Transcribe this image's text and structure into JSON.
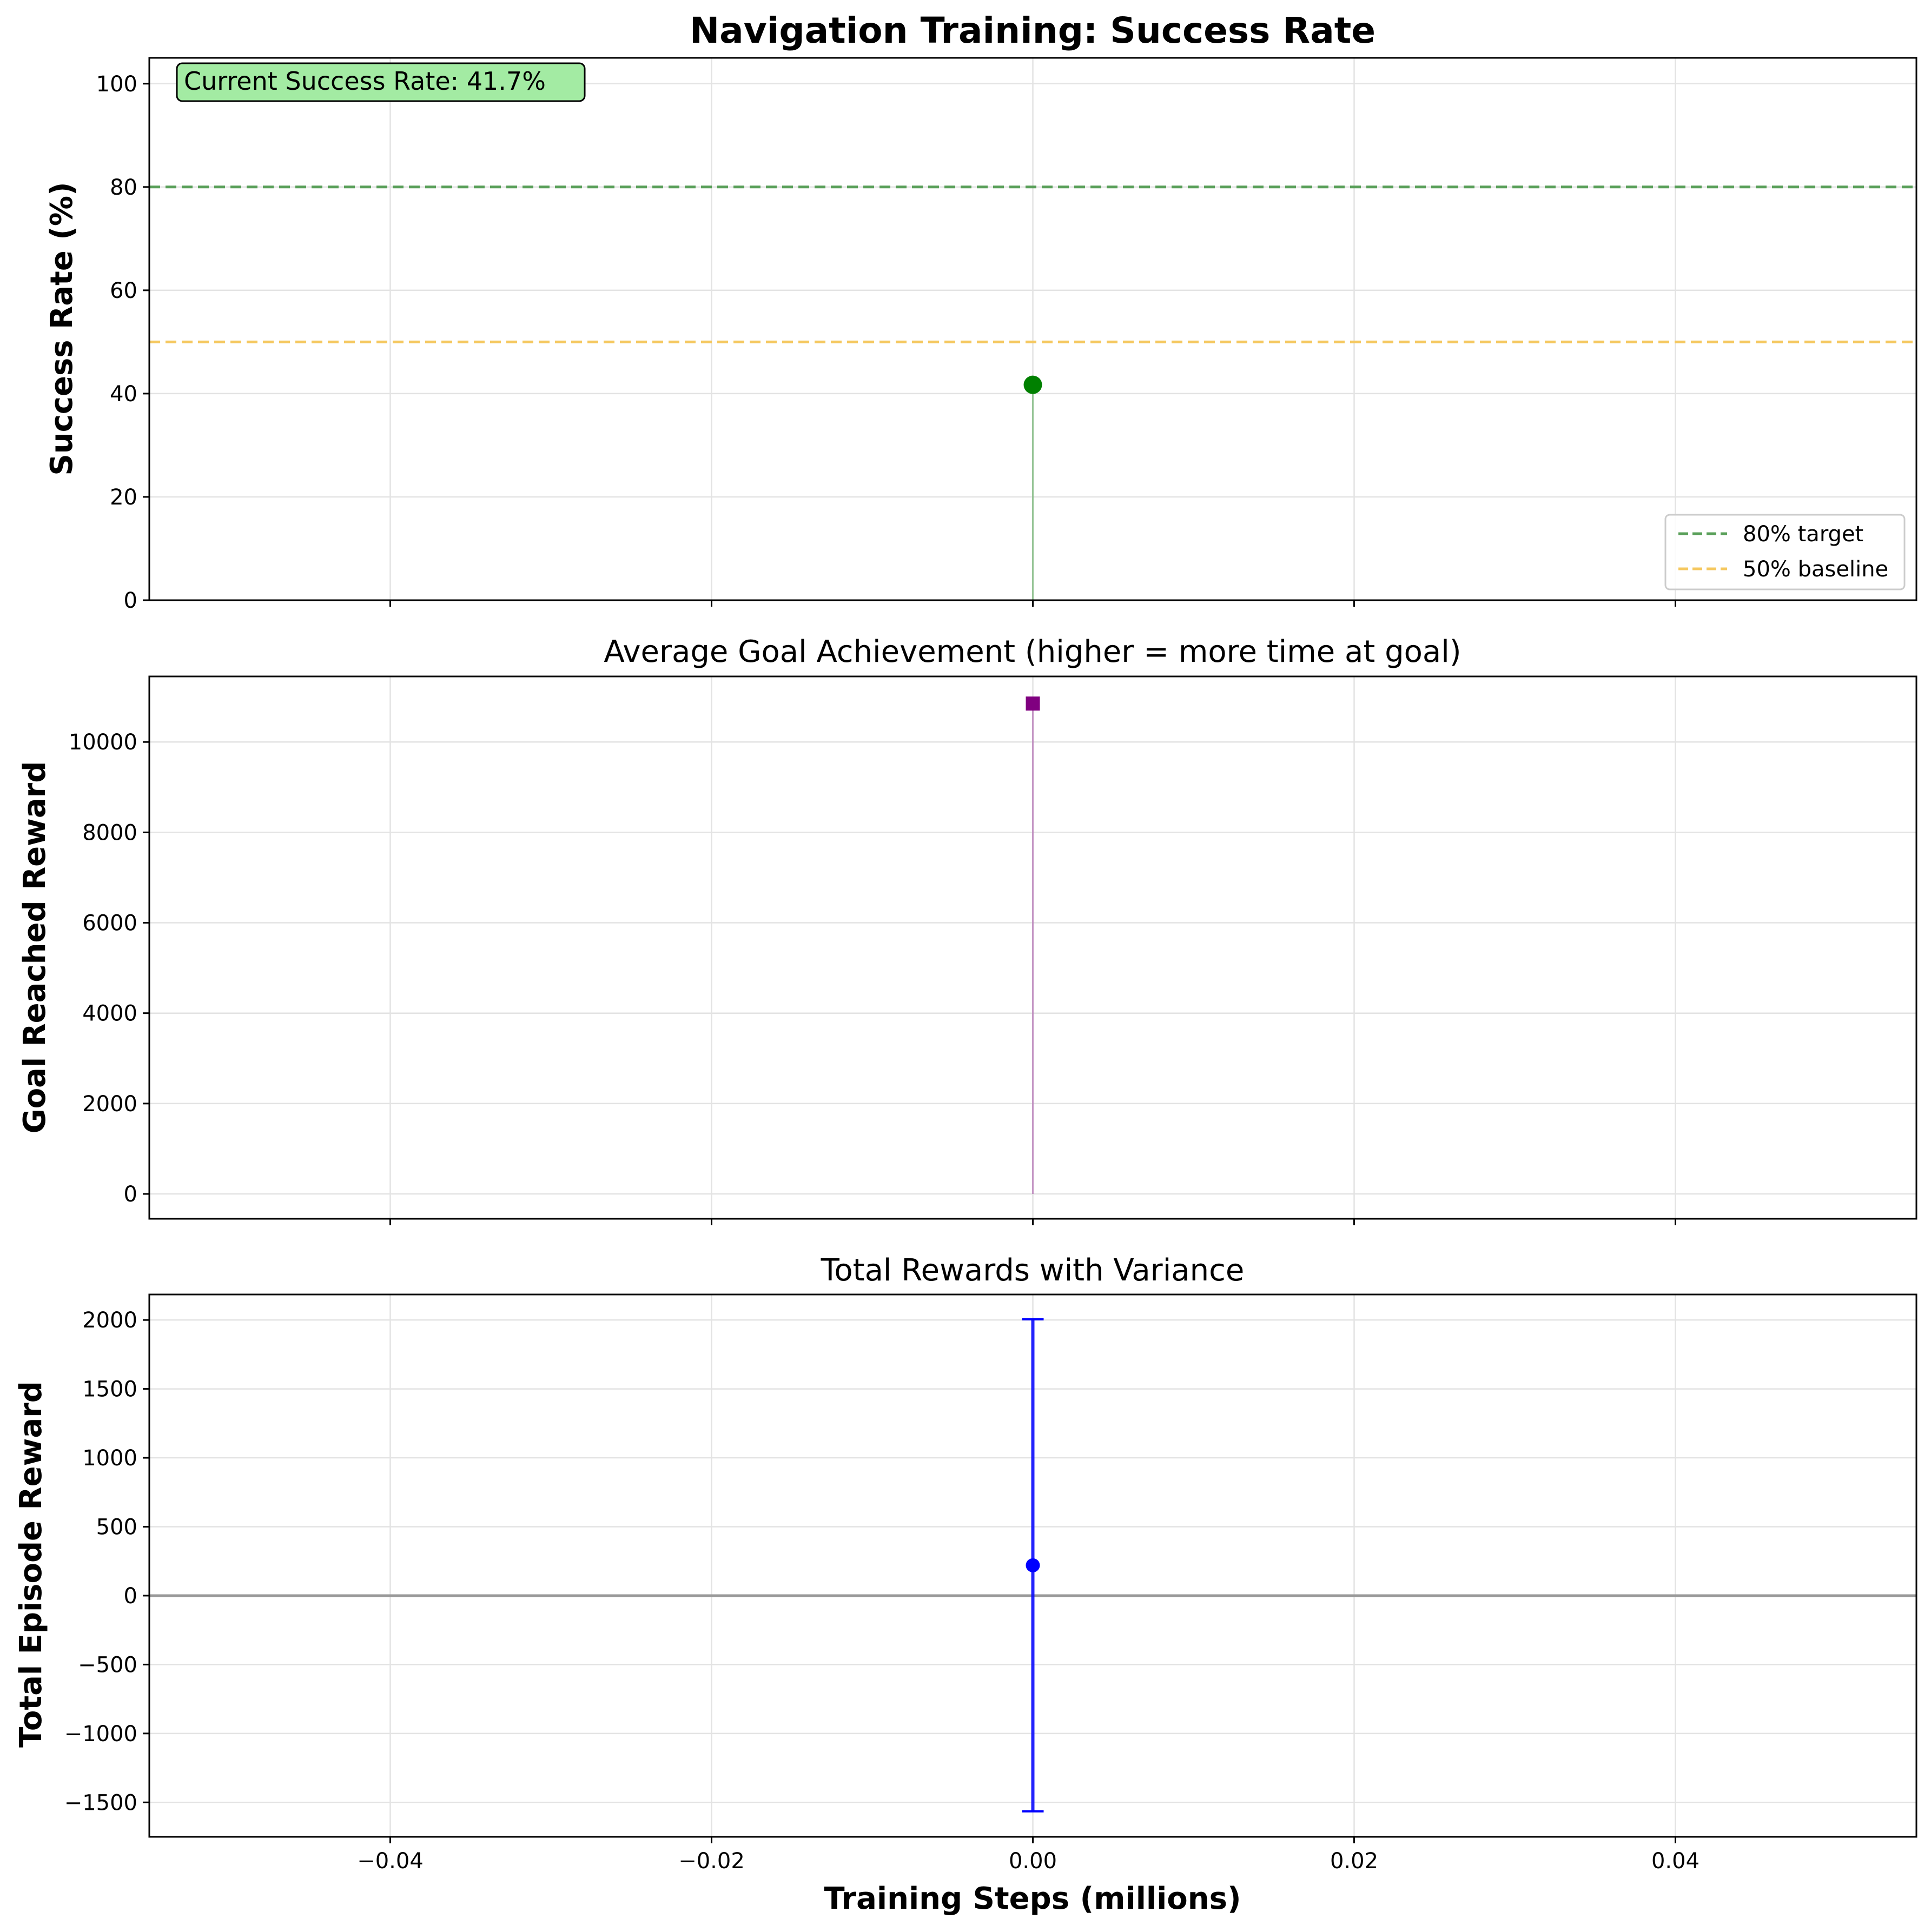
{
  "figure": {
    "xlabel": "Training Steps (millions)",
    "x_tick_labels": [
      "−0.04",
      "−0.02",
      "0.00",
      "0.02",
      "0.04"
    ]
  },
  "chart_data": [
    {
      "type": "line",
      "title": "Navigation Training: Success Rate",
      "ylabel": "Success Rate (%)",
      "xlim": [
        -0.055,
        0.055
      ],
      "ylim": [
        0,
        105
      ],
      "grid": true,
      "y_tick_labels": [
        "0",
        "20",
        "40",
        "60",
        "80",
        "100"
      ],
      "x": [
        0.0
      ],
      "series": [
        {
          "values": [
            41.7
          ],
          "color": "#008000",
          "marker": "circle"
        }
      ],
      "reference_lines": [
        {
          "y": 80,
          "label": "80% target",
          "color": "#5aa05a",
          "style": "dashed"
        },
        {
          "y": 50,
          "label": "50% baseline",
          "color": "#f5c860",
          "style": "dashed"
        }
      ],
      "legend": {
        "position": "bottom-right",
        "entries": [
          "80% target",
          "50% baseline"
        ]
      },
      "annotation": {
        "text": "Current Success Rate: 41.7%",
        "position": "top-left",
        "background": "#a3eba3"
      }
    },
    {
      "type": "line",
      "title": "Average Goal Achievement (higher = more time at goal)",
      "ylabel": "Goal Reached Reward",
      "xlim": [
        -0.055,
        0.055
      ],
      "ylim": [
        -550,
        11450
      ],
      "grid": true,
      "y_tick_labels": [
        "0",
        "2000",
        "4000",
        "6000",
        "8000",
        "10000"
      ],
      "x": [
        0.0
      ],
      "series": [
        {
          "values": [
            10850
          ],
          "color": "#800080",
          "marker": "square"
        }
      ]
    },
    {
      "type": "scatter",
      "title": "Total Rewards with Variance",
      "ylabel": "Total Episode Reward",
      "xlim": [
        -0.055,
        0.055
      ],
      "ylim": [
        -1750,
        2185
      ],
      "grid": true,
      "y_tick_labels": [
        "−1500",
        "−1000",
        "−500",
        "0",
        "500",
        "1000",
        "1500",
        "2000"
      ],
      "x": [
        0.0
      ],
      "series": [
        {
          "values": [
            220
          ],
          "error_low": [
            -1565
          ],
          "error_high": [
            2005
          ],
          "color": "#0000ff",
          "marker": "circle"
        }
      ],
      "reference_lines": [
        {
          "y": 0,
          "color": "#999999",
          "style": "solid"
        }
      ]
    }
  ]
}
